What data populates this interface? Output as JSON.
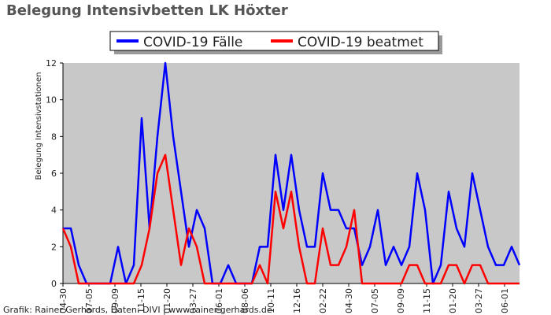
{
  "chart_data": {
    "type": "line",
    "title": "Belegung Intensivbetten LK Höxter",
    "y_label": "Belegung Intensivstationen",
    "source": "Grafik: Rainer Gerhards, Daten: DIVI | www.rainer-gerhards.de",
    "legend": "top",
    "background": "#c8c8c8",
    "x": [
      0,
      20,
      40,
      60,
      80,
      100,
      120,
      140,
      160,
      180,
      200,
      220,
      240,
      260,
      280,
      300,
      320,
      340,
      360,
      380,
      400,
      420,
      440,
      460,
      480,
      500,
      520,
      540,
      560,
      580,
      600,
      620,
      640,
      660,
      680,
      700,
      720,
      740,
      760,
      780,
      800,
      820,
      840,
      860,
      880,
      900,
      920,
      940,
      960,
      980,
      1000,
      1020,
      1040,
      1060,
      1080,
      1100,
      1120,
      1140,
      1160
    ],
    "xlim": [
      0,
      1160
    ],
    "xticks": [
      {
        "value": 0,
        "label": "04-30"
      },
      {
        "value": 66,
        "label": "07-05"
      },
      {
        "value": 132,
        "label": "09-09"
      },
      {
        "value": 198,
        "label": "11-15"
      },
      {
        "value": 264,
        "label": "01-20"
      },
      {
        "value": 330,
        "label": "03-27"
      },
      {
        "value": 396,
        "label": "06-01"
      },
      {
        "value": 462,
        "label": "08-06"
      },
      {
        "value": 528,
        "label": "10-11"
      },
      {
        "value": 594,
        "label": "12-16"
      },
      {
        "value": 660,
        "label": "02-22"
      },
      {
        "value": 726,
        "label": "04-30"
      },
      {
        "value": 792,
        "label": "07-05"
      },
      {
        "value": 858,
        "label": "09-09"
      },
      {
        "value": 924,
        "label": "11-15"
      },
      {
        "value": 990,
        "label": "01-20"
      },
      {
        "value": 1056,
        "label": "03-27"
      },
      {
        "value": 1122,
        "label": "06-01"
      }
    ],
    "ylim": [
      0,
      12
    ],
    "yticks": [
      0,
      2,
      4,
      6,
      8,
      10,
      12
    ],
    "series": [
      {
        "name": "COVID-19 Fälle",
        "color": "#0000ff",
        "values": [
          3,
          3,
          1,
          0,
          0,
          0,
          0,
          2,
          0,
          1,
          9,
          3,
          8,
          12,
          8,
          5,
          2,
          4,
          3,
          0,
          0,
          1,
          0,
          0,
          0,
          2,
          2,
          7,
          4,
          7,
          4,
          2,
          2,
          6,
          4,
          4,
          3,
          3,
          1,
          2,
          4,
          1,
          2,
          1,
          2,
          6,
          4,
          0,
          1,
          5,
          3,
          2,
          6,
          4,
          2,
          1,
          1,
          2,
          1
        ]
      },
      {
        "name": "COVID-19 beatmet",
        "color": "#ff0000",
        "values": [
          3,
          2,
          0,
          0,
          0,
          0,
          0,
          0,
          0,
          0,
          1,
          3,
          6,
          7,
          4,
          1,
          3,
          2,
          0,
          0,
          0,
          0,
          0,
          0,
          0,
          1,
          0,
          5,
          3,
          5,
          2,
          0,
          0,
          3,
          1,
          1,
          2,
          4,
          0,
          0,
          0,
          0,
          0,
          0,
          1,
          1,
          0,
          0,
          0,
          1,
          1,
          0,
          1,
          1,
          0,
          0,
          0,
          0,
          0
        ]
      }
    ]
  }
}
